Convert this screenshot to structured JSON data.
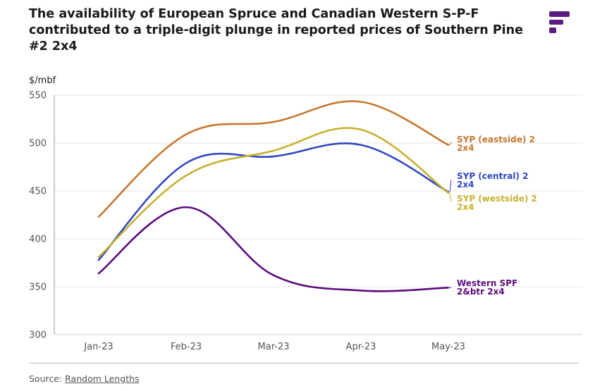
{
  "header": {
    "title": "The availability of European Spruce and Canadian Western S-P-F contributed to a triple-digit plunge in reported prices of Southern Pine #2 2x4"
  },
  "logo": {
    "icon": "brand-logo-icon",
    "color": "#5b1a82"
  },
  "footer": {
    "source_prefix": "Source:",
    "source_link": "Random Lengths"
  },
  "chart_data": {
    "type": "line",
    "ylabel": "$/mbf",
    "ylim": [
      300,
      550
    ],
    "yticks": [
      "550",
      "500",
      "450",
      "400",
      "350",
      "300"
    ],
    "categories": [
      "Jan-23",
      "Feb-23",
      "Mar-23",
      "Apr-23",
      "May-23"
    ],
    "grid": true,
    "legend": "direct labels at line ends",
    "series": [
      {
        "name": "SYP (eastside) 2 2x4",
        "label_lines": [
          "SYP (eastside) 2",
          "2x4"
        ],
        "color": "#c8782e",
        "values": [
          423,
          509,
          522,
          543,
          498
        ]
      },
      {
        "name": "SYP (central) 2 2x4",
        "label_lines": [
          "SYP (central) 2",
          "2x4"
        ],
        "color": "#2f48c2",
        "values": [
          378,
          479,
          486,
          498,
          449
        ]
      },
      {
        "name": "SYP (westside) 2 2x4",
        "label_lines": [
          "SYP (westside) 2",
          "2x4"
        ],
        "color": "#c9b030",
        "values": [
          381,
          466,
          492,
          514,
          448
        ]
      },
      {
        "name": "Western SPF 2&btr 2x4",
        "label_lines": [
          "Western SPF",
          "2&btr 2x4"
        ],
        "color": "#5c0b7e",
        "values": [
          364,
          433,
          362,
          346,
          349
        ]
      }
    ]
  }
}
